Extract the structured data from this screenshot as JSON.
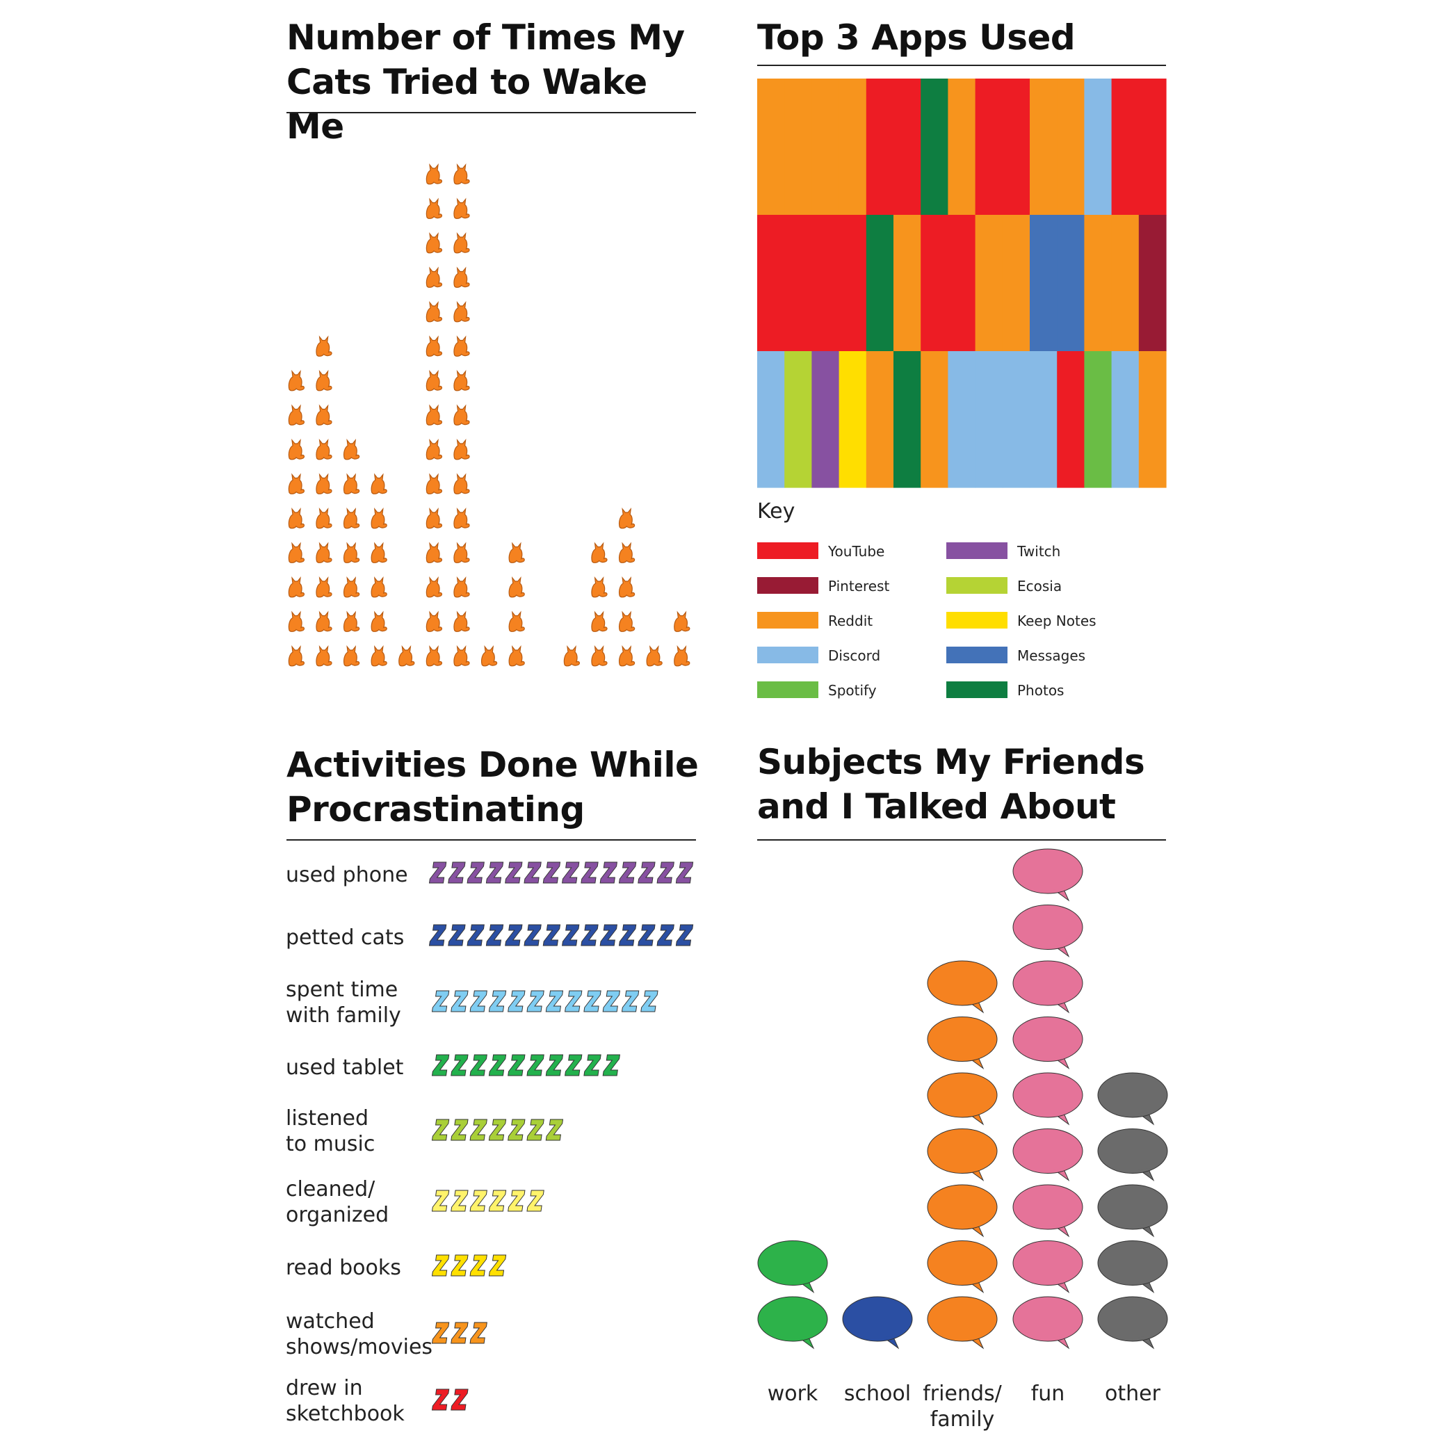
{
  "chart_data": [
    {
      "type": "pictograph",
      "title": "Number of Times My Cats Tried to Wake Me",
      "icon": "cat-icon",
      "color": "#F58220",
      "values": [
        9,
        10,
        7,
        6,
        1,
        15,
        15,
        1,
        4,
        0,
        1,
        4,
        5,
        1,
        2
      ]
    },
    {
      "type": "heatmap",
      "title": "Top 3 Apps Used",
      "rows": [
        [
          "Reddit",
          "Reddit",
          "Reddit",
          "Reddit",
          "YouTube",
          "YouTube",
          "Photos",
          "Reddit",
          "YouTube",
          "YouTube",
          "Reddit",
          "Reddit",
          "Discord",
          "YouTube",
          "YouTube"
        ],
        [
          "YouTube",
          "YouTube",
          "YouTube",
          "YouTube",
          "Photos",
          "Reddit",
          "YouTube",
          "YouTube",
          "Reddit",
          "Reddit",
          "Messages",
          "Messages",
          "Reddit",
          "Reddit",
          "Pinterest"
        ],
        [
          "Discord",
          "Ecosia",
          "Twitch",
          "Keep Notes",
          "Reddit",
          "Photos",
          "Reddit",
          "Discord",
          "Discord",
          "Discord",
          "Discord",
          "YouTube",
          "Spotify",
          "Discord",
          "Reddit"
        ]
      ],
      "key_title": "Key",
      "legend": [
        {
          "name": "YouTube",
          "color": "#ED1C24"
        },
        {
          "name": "Pinterest",
          "color": "#981B34"
        },
        {
          "name": "Reddit",
          "color": "#F7941D"
        },
        {
          "name": "Discord",
          "color": "#87BAE6"
        },
        {
          "name": "Spotify",
          "color": "#6ABD45"
        },
        {
          "name": "Twitch",
          "color": "#8751A1"
        },
        {
          "name": "Ecosia",
          "color": "#B5D334"
        },
        {
          "name": "Keep Notes",
          "color": "#FFDE00"
        },
        {
          "name": "Messages",
          "color": "#4372B8"
        },
        {
          "name": "Photos",
          "color": "#0E7E41"
        }
      ]
    },
    {
      "type": "pictograph",
      "title": "Activities Done While\nProcrastinating",
      "icon": "z-icon",
      "categories": [
        "used phone",
        "petted cats",
        "spent time\nwith family",
        "used tablet",
        "listened\nto music",
        "cleaned/\norganized",
        "read books",
        "watched\nshows/movies",
        "drew in\nsketchbook"
      ],
      "values": [
        14,
        14,
        12,
        10,
        7,
        6,
        4,
        3,
        2
      ],
      "colors": [
        "#8751A1",
        "#2B4FA3",
        "#7FCDF2",
        "#23B14D",
        "#A9CF38",
        "#FFF36B",
        "#FFE000",
        "#F7941D",
        "#ED1C24"
      ]
    },
    {
      "type": "pictograph",
      "title": "Subjects My Friends\nand I Talked About",
      "icon": "speech-bubble-icon",
      "categories": [
        "work",
        "school",
        "friends/\nfamily",
        "fun",
        "other"
      ],
      "values": [
        2,
        1,
        7,
        9,
        5
      ],
      "colors": [
        "#2DB24A",
        "#2B4FA3",
        "#F58220",
        "#E57399",
        "#6B6B6B"
      ]
    }
  ]
}
